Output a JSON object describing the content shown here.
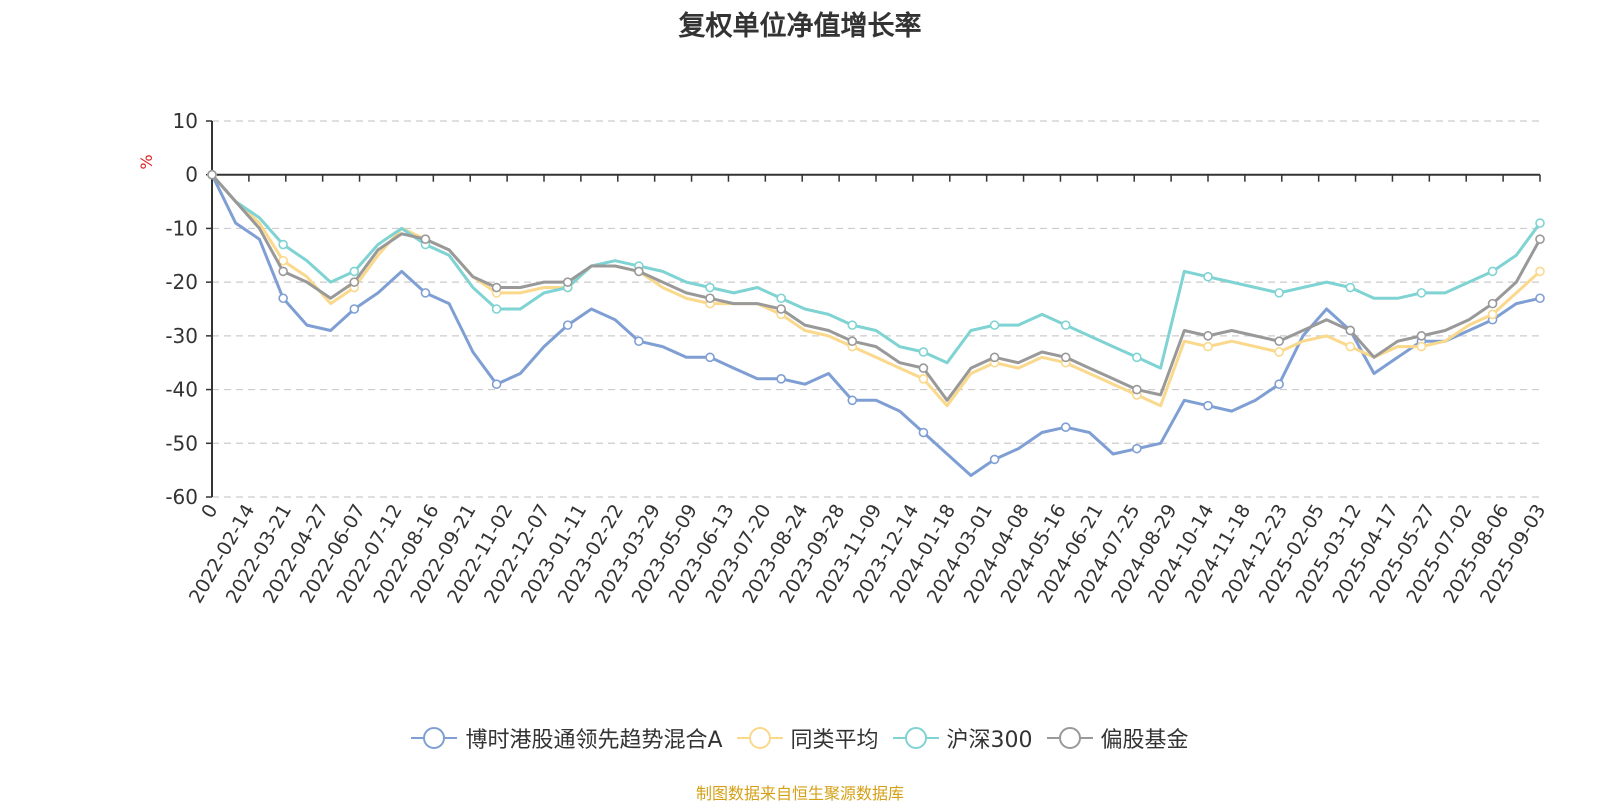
{
  "chart_data": {
    "type": "line",
    "title": "复权单位净值增长率",
    "ylabel": "%",
    "ylim": [
      -60,
      10
    ],
    "y_ticks": [
      "10",
      "0",
      "-10",
      "-20",
      "-30",
      "-40",
      "-50",
      "-60"
    ],
    "x_ticks": [
      "0",
      "2022-02-14",
      "2022-03-21",
      "2022-04-27",
      "2022-06-07",
      "2022-07-12",
      "2022-08-16",
      "2022-09-21",
      "2022-11-02",
      "2022-12-07",
      "2023-01-11",
      "2023-02-22",
      "2023-03-29",
      "2023-05-09",
      "2023-06-13",
      "2023-07-20",
      "2023-08-24",
      "2023-09-28",
      "2023-11-09",
      "2023-12-14",
      "2024-01-18",
      "2024-03-01",
      "2024-04-08",
      "2024-05-16",
      "2024-06-21",
      "2024-07-25",
      "2024-08-29",
      "2024-10-14",
      "2024-11-18",
      "2024-12-23",
      "2025-02-05",
      "2025-03-12",
      "2025-04-17",
      "2025-05-27",
      "2025-07-02",
      "2025-08-06",
      "2025-09-03"
    ],
    "grid": true,
    "legend_position": "bottom",
    "series": [
      {
        "name": "博时港股通领先趋势混合A",
        "color": "#7f9fd4",
        "values": [
          0,
          -9,
          -12,
          -23,
          -28,
          -29,
          -25,
          -22,
          -18,
          -22,
          -24,
          -33,
          -39,
          -37,
          -32,
          -28,
          -25,
          -27,
          -31,
          -32,
          -34,
          -34,
          -36,
          -38,
          -38,
          -39,
          -37,
          -42,
          -42,
          -44,
          -48,
          -52,
          -56,
          -53,
          -51,
          -48,
          -47,
          -48,
          -52,
          -51,
          -50,
          -42,
          -43,
          -44,
          -42,
          -39,
          -30,
          -25,
          -29,
          -37,
          -34,
          -31,
          -31,
          -29,
          -27,
          -24,
          -23
        ]
      },
      {
        "name": "同类平均",
        "color": "#fad98c",
        "values": [
          0,
          -5,
          -9,
          -16,
          -19,
          -24,
          -21,
          -15,
          -10,
          -12,
          -14,
          -19,
          -22,
          -22,
          -21,
          -21,
          -17,
          -17,
          -18,
          -21,
          -23,
          -24,
          -24,
          -24,
          -26,
          -29,
          -30,
          -32,
          -34,
          -36,
          -38,
          -43,
          -37,
          -35,
          -36,
          -34,
          -35,
          -37,
          -39,
          -41,
          -43,
          -31,
          -32,
          -31,
          -32,
          -33,
          -31,
          -30,
          -32,
          -34,
          -32,
          -32,
          -31,
          -28,
          -26,
          -22,
          -18
        ]
      },
      {
        "name": "沪深300",
        "color": "#7fd3d3",
        "values": [
          0,
          -5,
          -8,
          -13,
          -16,
          -20,
          -18,
          -13,
          -10,
          -13,
          -15,
          -21,
          -25,
          -25,
          -22,
          -21,
          -17,
          -16,
          -17,
          -18,
          -20,
          -21,
          -22,
          -21,
          -23,
          -25,
          -26,
          -28,
          -29,
          -32,
          -33,
          -35,
          -29,
          -28,
          -28,
          -26,
          -28,
          -30,
          -32,
          -34,
          -36,
          -18,
          -19,
          -20,
          -21,
          -22,
          -21,
          -20,
          -21,
          -23,
          -23,
          -22,
          -22,
          -20,
          -18,
          -15,
          -9
        ]
      },
      {
        "name": "偏股基金",
        "color": "#999999",
        "values": [
          0,
          -5,
          -10,
          -18,
          -20,
          -23,
          -20,
          -14,
          -11,
          -12,
          -14,
          -19,
          -21,
          -21,
          -20,
          -20,
          -17,
          -17,
          -18,
          -20,
          -22,
          -23,
          -24,
          -24,
          -25,
          -28,
          -29,
          -31,
          -32,
          -35,
          -36,
          -42,
          -36,
          -34,
          -35,
          -33,
          -34,
          -36,
          -38,
          -40,
          -41,
          -29,
          -30,
          -29,
          -30,
          -31,
          -29,
          -27,
          -29,
          -34,
          -31,
          -30,
          -29,
          -27,
          -24,
          -20,
          -12
        ]
      }
    ]
  },
  "footer": {
    "source": "制图数据来自恒生聚源数据库"
  }
}
